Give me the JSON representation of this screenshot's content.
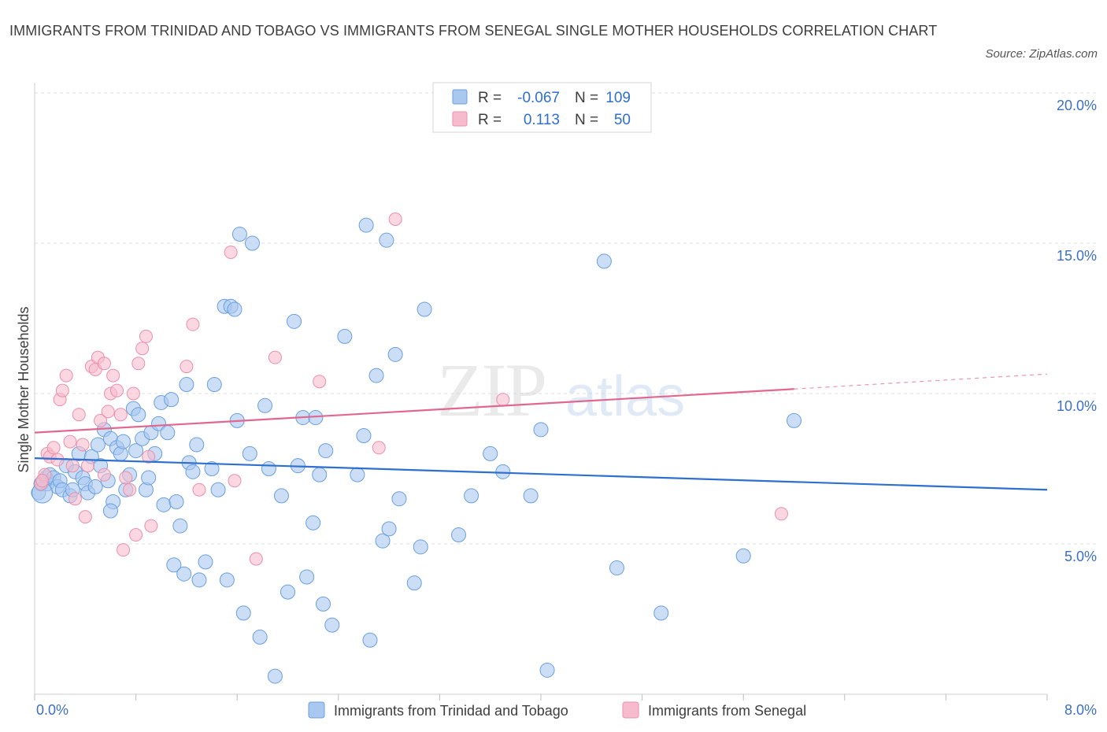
{
  "header": {
    "title": "IMMIGRANTS FROM TRINIDAD AND TOBAGO VS IMMIGRANTS FROM SENEGAL SINGLE MOTHER HOUSEHOLDS CORRELATION CHART",
    "source": "Source: ZipAtlas.com"
  },
  "watermark": {
    "zip": "ZIP",
    "atlas": "atlas"
  },
  "legend_stats": {
    "rows": [
      {
        "r_label": "R =",
        "r_value": "-0.067",
        "n_label": "N =",
        "n_value": "109"
      },
      {
        "r_label": "R =",
        "r_value": "0.113",
        "n_label": "N =",
        "n_value": "50"
      }
    ]
  },
  "chart_data": {
    "type": "scatter",
    "title": "IMMIGRANTS FROM TRINIDAD AND TOBAGO VS IMMIGRANTS FROM SENEGAL SINGLE MOTHER HOUSEHOLDS CORRELATION CHART",
    "ylabel": "Single Mother Households",
    "xlabel": "",
    "xlim": [
      0,
      8
    ],
    "ylim": [
      0,
      20
    ],
    "x_tick_labels": [
      "0.0%",
      "8.0%"
    ],
    "y_tick_labels": [
      "5.0%",
      "10.0%",
      "15.0%",
      "20.0%"
    ],
    "y_ticks": [
      5,
      10,
      15,
      20
    ],
    "grid": true,
    "legend_position": "bottom",
    "colors": {
      "blue_fill": "#a8c8f0",
      "blue_stroke": "#6a9fe0",
      "blue_line": "#2e6fcf",
      "pink_fill": "#f6bccd",
      "pink_stroke": "#eb8fac",
      "pink_line": "#e0688f",
      "value_text": "#2e6fcf",
      "axis_text": "#3d6fc4"
    },
    "series": [
      {
        "name": "Immigrants from Trinidad and Tobago",
        "color": "#a8c8f0",
        "trend": {
          "x0": 0,
          "y0": 7.85,
          "x1": 8,
          "y1": 6.8
        },
        "points": [
          [
            0.03,
            6.7
          ],
          [
            0.05,
            7.0
          ],
          [
            0.07,
            7.1
          ],
          [
            0.09,
            7.2
          ],
          [
            0.1,
            7.0
          ],
          [
            0.12,
            7.3
          ],
          [
            0.15,
            7.2
          ],
          [
            0.18,
            6.9
          ],
          [
            0.2,
            7.1
          ],
          [
            0.22,
            6.8
          ],
          [
            0.25,
            7.6
          ],
          [
            0.28,
            6.6
          ],
          [
            0.3,
            6.8
          ],
          [
            0.32,
            7.4
          ],
          [
            0.35,
            8.0
          ],
          [
            0.38,
            7.2
          ],
          [
            0.4,
            7.0
          ],
          [
            0.42,
            6.7
          ],
          [
            0.45,
            7.9
          ],
          [
            0.48,
            6.9
          ],
          [
            0.5,
            8.3
          ],
          [
            0.52,
            7.6
          ],
          [
            0.55,
            8.8
          ],
          [
            0.58,
            7.1
          ],
          [
            0.6,
            8.5
          ],
          [
            0.62,
            6.4
          ],
          [
            0.65,
            8.2
          ],
          [
            0.68,
            8.0
          ],
          [
            0.7,
            8.4
          ],
          [
            0.72,
            6.8
          ],
          [
            0.75,
            7.3
          ],
          [
            0.78,
            9.5
          ],
          [
            0.8,
            8.1
          ],
          [
            0.82,
            9.3
          ],
          [
            0.85,
            8.5
          ],
          [
            0.88,
            6.8
          ],
          [
            0.9,
            7.2
          ],
          [
            0.92,
            8.7
          ],
          [
            0.95,
            8.0
          ],
          [
            0.98,
            9.0
          ],
          [
            1.0,
            9.7
          ],
          [
            1.02,
            6.3
          ],
          [
            1.05,
            8.7
          ],
          [
            1.08,
            9.8
          ],
          [
            1.1,
            4.3
          ],
          [
            1.12,
            6.4
          ],
          [
            1.15,
            5.6
          ],
          [
            1.18,
            4.0
          ],
          [
            1.2,
            10.3
          ],
          [
            1.22,
            7.7
          ],
          [
            1.25,
            7.4
          ],
          [
            1.28,
            8.3
          ],
          [
            1.3,
            3.8
          ],
          [
            1.35,
            4.4
          ],
          [
            1.4,
            7.5
          ],
          [
            1.42,
            10.3
          ],
          [
            1.45,
            6.8
          ],
          [
            1.5,
            12.9
          ],
          [
            1.52,
            3.8
          ],
          [
            1.55,
            12.9
          ],
          [
            1.58,
            12.8
          ],
          [
            1.6,
            9.1
          ],
          [
            1.62,
            15.3
          ],
          [
            1.65,
            2.7
          ],
          [
            1.7,
            8.0
          ],
          [
            1.72,
            15.0
          ],
          [
            1.78,
            1.9
          ],
          [
            1.82,
            9.6
          ],
          [
            1.85,
            7.5
          ],
          [
            1.9,
            0.6
          ],
          [
            1.95,
            6.6
          ],
          [
            2.0,
            3.4
          ],
          [
            2.05,
            12.4
          ],
          [
            2.08,
            7.6
          ],
          [
            2.12,
            9.2
          ],
          [
            2.15,
            3.9
          ],
          [
            2.2,
            5.7
          ],
          [
            2.22,
            9.2
          ],
          [
            2.25,
            7.3
          ],
          [
            2.28,
            3.0
          ],
          [
            2.3,
            8.1
          ],
          [
            2.35,
            2.3
          ],
          [
            2.45,
            11.9
          ],
          [
            2.55,
            7.3
          ],
          [
            2.6,
            8.6
          ],
          [
            2.62,
            15.6
          ],
          [
            2.65,
            1.8
          ],
          [
            2.7,
            10.6
          ],
          [
            2.75,
            5.1
          ],
          [
            2.78,
            15.1
          ],
          [
            2.8,
            5.5
          ],
          [
            2.85,
            11.3
          ],
          [
            2.88,
            6.5
          ],
          [
            3.0,
            3.7
          ],
          [
            3.05,
            4.9
          ],
          [
            3.08,
            12.8
          ],
          [
            3.35,
            5.3
          ],
          [
            3.45,
            6.6
          ],
          [
            3.6,
            8.0
          ],
          [
            3.7,
            7.4
          ],
          [
            3.92,
            6.6
          ],
          [
            4.0,
            8.8
          ],
          [
            4.05,
            0.8
          ],
          [
            4.5,
            14.4
          ],
          [
            4.6,
            4.2
          ],
          [
            4.95,
            2.7
          ],
          [
            5.6,
            4.6
          ],
          [
            6.0,
            9.1
          ],
          [
            0.6,
            6.1
          ]
        ],
        "radius": 9
      },
      {
        "name": "Immigrants from Senegal",
        "color": "#f6bccd",
        "trend": {
          "x0": 0,
          "y0": 8.7,
          "x1": 6.0,
          "y1": 10.15,
          "dashed_to_x": 8,
          "dashed_to_y": 10.65
        },
        "points": [
          [
            0.05,
            7.0
          ],
          [
            0.08,
            7.3
          ],
          [
            0.1,
            8.0
          ],
          [
            0.12,
            7.9
          ],
          [
            0.15,
            8.2
          ],
          [
            0.18,
            7.8
          ],
          [
            0.2,
            9.8
          ],
          [
            0.22,
            10.1
          ],
          [
            0.25,
            10.6
          ],
          [
            0.28,
            8.4
          ],
          [
            0.3,
            7.6
          ],
          [
            0.32,
            6.5
          ],
          [
            0.35,
            9.3
          ],
          [
            0.38,
            8.3
          ],
          [
            0.4,
            5.9
          ],
          [
            0.42,
            7.6
          ],
          [
            0.45,
            10.9
          ],
          [
            0.48,
            10.8
          ],
          [
            0.5,
            11.2
          ],
          [
            0.52,
            9.1
          ],
          [
            0.55,
            11.0
          ],
          [
            0.58,
            9.4
          ],
          [
            0.6,
            10.0
          ],
          [
            0.62,
            10.6
          ],
          [
            0.65,
            10.1
          ],
          [
            0.68,
            9.3
          ],
          [
            0.7,
            4.8
          ],
          [
            0.72,
            7.2
          ],
          [
            0.75,
            6.8
          ],
          [
            0.78,
            10.0
          ],
          [
            0.8,
            5.3
          ],
          [
            0.82,
            11.0
          ],
          [
            0.85,
            11.5
          ],
          [
            0.88,
            11.9
          ],
          [
            0.9,
            7.9
          ],
          [
            0.92,
            5.6
          ],
          [
            1.2,
            10.9
          ],
          [
            1.25,
            12.3
          ],
          [
            1.3,
            6.8
          ],
          [
            1.55,
            14.7
          ],
          [
            1.58,
            7.1
          ],
          [
            1.75,
            4.5
          ],
          [
            1.9,
            11.2
          ],
          [
            2.25,
            10.4
          ],
          [
            2.72,
            8.2
          ],
          [
            2.85,
            15.8
          ],
          [
            3.7,
            9.8
          ],
          [
            5.9,
            6.0
          ],
          [
            0.06,
            7.1
          ],
          [
            0.55,
            7.3
          ]
        ],
        "radius": 8
      }
    ]
  },
  "bottom_legend": {
    "items": [
      {
        "label": "Immigrants from Trinidad and Tobago"
      },
      {
        "label": "Immigrants from Senegal"
      }
    ]
  }
}
